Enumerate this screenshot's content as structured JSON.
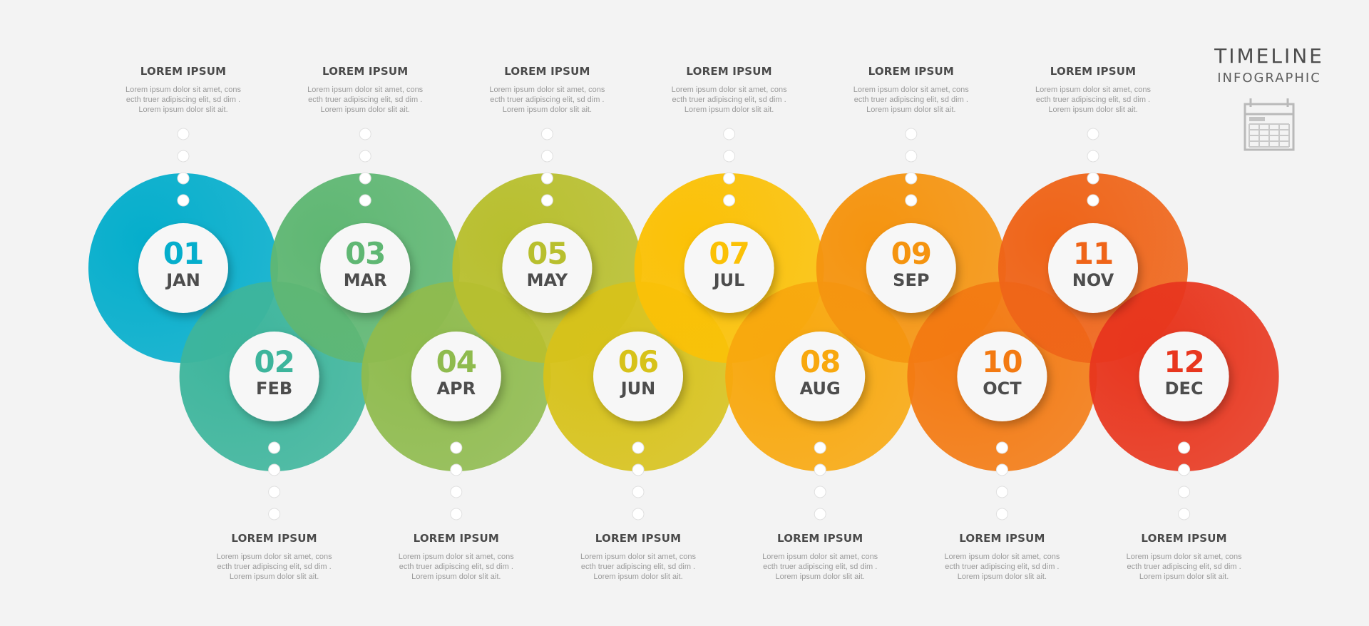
{
  "brand": {
    "title": "TIMELINE",
    "subtitle": "INFOGRAPHIC",
    "icon": "calendar-icon"
  },
  "colors": [
    "#05aecc",
    "#3db59c",
    "#5fb773",
    "#8fbb4e",
    "#b8bf2e",
    "#d7c21a",
    "#fbc106",
    "#f8a80e",
    "#f5940f",
    "#f37a12",
    "#ef6418",
    "#e8361e"
  ],
  "milestones": [
    {
      "number": "01",
      "month": "JAN",
      "title": "LOREM IPSUM",
      "lines": [
        "Lorem ipsum dolor sit amet, cons",
        "ecth truer adipiscing elit, sd dim .",
        "Lorem ipsum dolor slit ait."
      ]
    },
    {
      "number": "02",
      "month": "FEB",
      "title": "LOREM IPSUM",
      "lines": [
        "Lorem ipsum dolor sit amet, cons",
        "ecth truer adipiscing elit, sd dim .",
        "Lorem ipsum dolor slit ait."
      ]
    },
    {
      "number": "03",
      "month": "MAR",
      "title": "LOREM IPSUM",
      "lines": [
        "Lorem ipsum dolor sit amet, cons",
        "ecth truer adipiscing elit, sd dim .",
        "Lorem ipsum dolor slit ait."
      ]
    },
    {
      "number": "04",
      "month": "APR",
      "title": "LOREM IPSUM",
      "lines": [
        "Lorem ipsum dolor sit amet, cons",
        "ecth truer adipiscing elit, sd dim .",
        "Lorem ipsum dolor slit ait."
      ]
    },
    {
      "number": "05",
      "month": "MAY",
      "title": "LOREM IPSUM",
      "lines": [
        "Lorem ipsum dolor sit amet, cons",
        "ecth truer adipiscing elit, sd dim .",
        "Lorem ipsum dolor slit ait."
      ]
    },
    {
      "number": "06",
      "month": "JUN",
      "title": "LOREM IPSUM",
      "lines": [
        "Lorem ipsum dolor sit amet, cons",
        "ecth truer adipiscing elit, sd dim .",
        "Lorem ipsum dolor slit ait."
      ]
    },
    {
      "number": "07",
      "month": "JUL",
      "title": "LOREM IPSUM",
      "lines": [
        "Lorem ipsum dolor sit amet, cons",
        "ecth truer adipiscing elit, sd dim .",
        "Lorem ipsum dolor slit ait."
      ]
    },
    {
      "number": "08",
      "month": "AUG",
      "title": "LOREM IPSUM",
      "lines": [
        "Lorem ipsum dolor sit amet, cons",
        "ecth truer adipiscing elit, sd dim .",
        "Lorem ipsum dolor slit ait."
      ]
    },
    {
      "number": "09",
      "month": "SEP",
      "title": "LOREM IPSUM",
      "lines": [
        "Lorem ipsum dolor sit amet, cons",
        "ecth truer adipiscing elit, sd dim .",
        "Lorem ipsum dolor slit ait."
      ]
    },
    {
      "number": "10",
      "month": "OCT",
      "title": "LOREM IPSUM",
      "lines": [
        "Lorem ipsum dolor sit amet, cons",
        "ecth truer adipiscing elit, sd dim .",
        "Lorem ipsum dolor slit ait."
      ]
    },
    {
      "number": "11",
      "month": "NOV",
      "title": "LOREM IPSUM",
      "lines": [
        "Lorem ipsum dolor sit amet, cons",
        "ecth truer adipiscing elit, sd dim .",
        "Lorem ipsum dolor slit ait."
      ]
    },
    {
      "number": "12",
      "month": "DEC",
      "title": "LOREM IPSUM",
      "lines": [
        "Lorem ipsum dolor sit amet, cons",
        "ecth truer adipiscing elit, sd dim .",
        "Lorem ipsum dolor slit ait."
      ]
    }
  ]
}
